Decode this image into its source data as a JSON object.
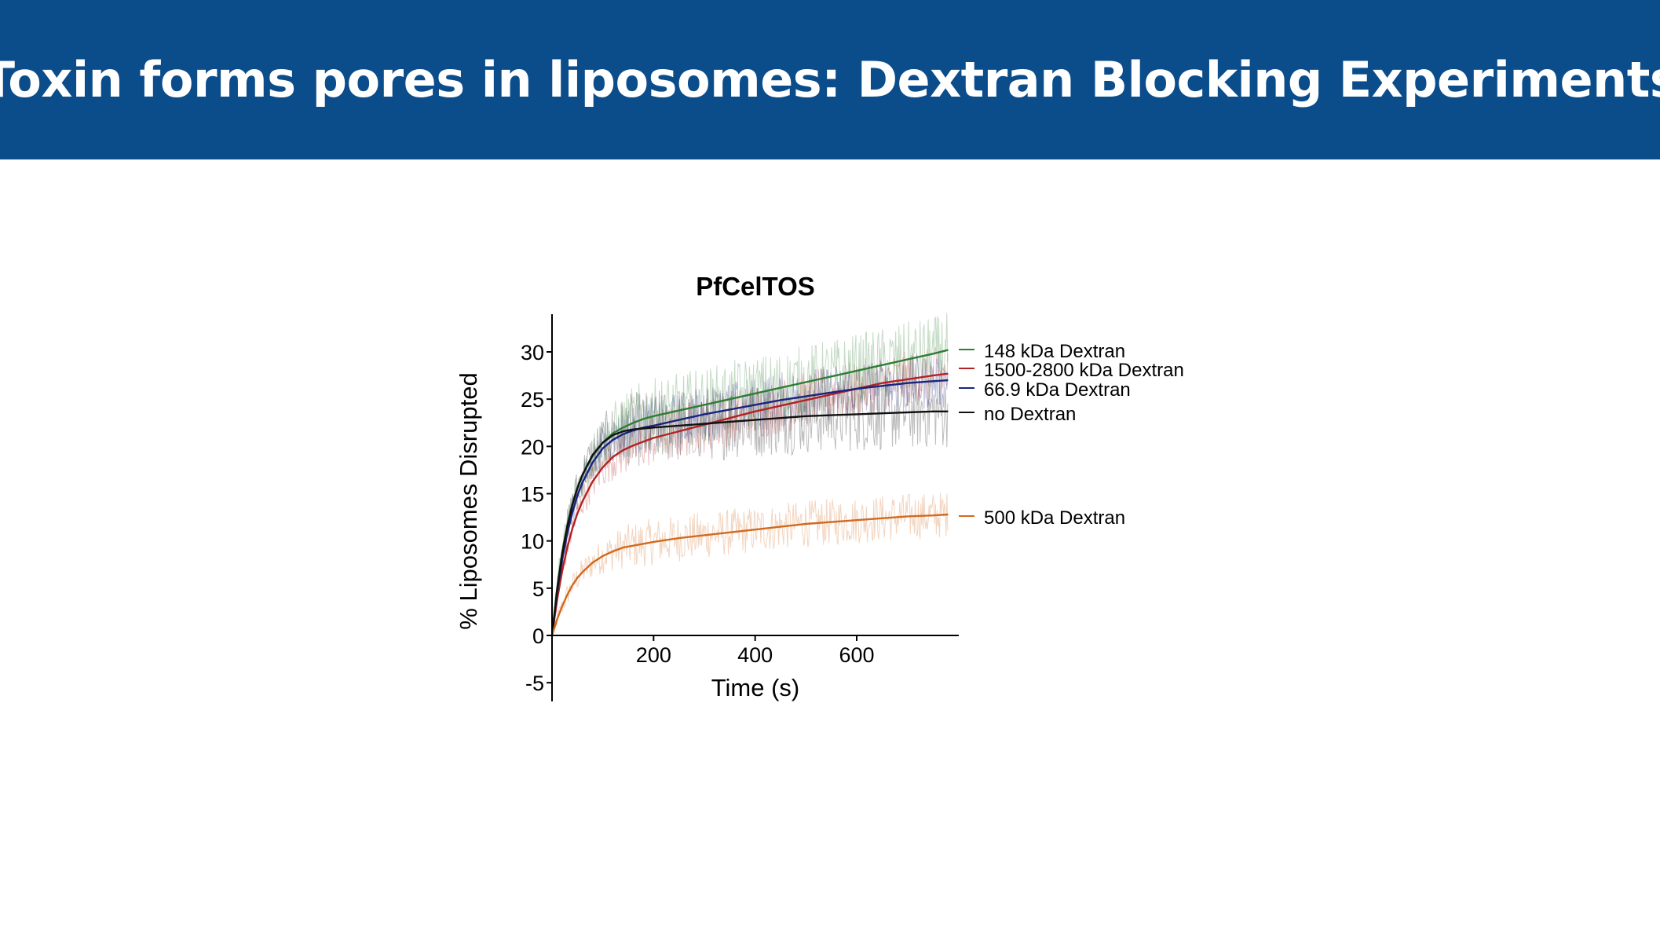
{
  "slide": {
    "title": "Toxin forms pores in liposomes: Dextran Blocking Experiments",
    "title_bar_color": "#0b4d8b"
  },
  "chart_data": {
    "type": "line",
    "title": "PfCelTOS",
    "xlabel": "Time (s)",
    "ylabel": "% Liposomes Disrupted",
    "xlim": [
      0,
      800
    ],
    "ylim": [
      -7,
      34
    ],
    "xticks": [
      200,
      400,
      600
    ],
    "yticks": [
      -5,
      0,
      5,
      10,
      15,
      20,
      25,
      30
    ],
    "grid": false,
    "legend_placement": "right",
    "x": [
      0,
      10,
      20,
      30,
      40,
      50,
      60,
      80,
      100,
      120,
      140,
      160,
      180,
      200,
      250,
      300,
      350,
      400,
      450,
      500,
      550,
      600,
      650,
      700,
      750,
      780
    ],
    "series": [
      {
        "name": "148 kDa Dextran",
        "color": "#2e7d32",
        "values": [
          0,
          5.0,
          8.8,
          11.7,
          13.9,
          15.6,
          17.0,
          19.0,
          20.4,
          21.4,
          22.0,
          22.5,
          22.9,
          23.2,
          23.8,
          24.4,
          25.0,
          25.6,
          26.2,
          26.8,
          27.4,
          28.0,
          28.6,
          29.2,
          29.8,
          30.2
        ]
      },
      {
        "name": "1500-2800 kDa Dextran",
        "color": "#b22222",
        "values": [
          0,
          3.8,
          6.8,
          9.3,
          11.3,
          12.9,
          14.2,
          16.3,
          17.8,
          18.9,
          19.6,
          20.1,
          20.5,
          20.9,
          21.6,
          22.3,
          23.0,
          23.7,
          24.3,
          24.9,
          25.5,
          26.1,
          26.7,
          27.1,
          27.5,
          27.7
        ]
      },
      {
        "name": "66.9 kDa Dextran",
        "color": "#1a237e",
        "values": [
          0,
          4.5,
          8.0,
          10.8,
          13.0,
          14.8,
          16.2,
          18.3,
          19.8,
          20.7,
          21.3,
          21.7,
          22.0,
          22.2,
          22.8,
          23.4,
          23.9,
          24.4,
          24.9,
          25.3,
          25.7,
          26.1,
          26.4,
          26.7,
          26.9,
          27.0
        ]
      },
      {
        "name": "no Dextran",
        "color": "#111111",
        "values": [
          0,
          4.8,
          8.6,
          11.5,
          13.8,
          15.6,
          17.0,
          19.1,
          20.4,
          21.2,
          21.6,
          21.8,
          21.9,
          22.0,
          22.2,
          22.4,
          22.6,
          22.8,
          23.0,
          23.2,
          23.3,
          23.4,
          23.5,
          23.6,
          23.7,
          23.7
        ]
      },
      {
        "name": "500 kDa Dextran",
        "color": "#d2691e",
        "values": [
          0,
          1.7,
          3.1,
          4.3,
          5.3,
          6.1,
          6.7,
          7.7,
          8.4,
          8.9,
          9.3,
          9.5,
          9.7,
          9.9,
          10.3,
          10.6,
          10.9,
          11.2,
          11.5,
          11.8,
          12.0,
          12.2,
          12.4,
          12.6,
          12.7,
          12.8
        ]
      }
    ],
    "raw_noise_amplitude": {
      "148 kDa Dextran": 4,
      "1500-2800 kDa Dextran": 3,
      "66.9 kDa Dextran": 3,
      "no Dextran": 4,
      "500 kDa Dextran": 2.5
    }
  }
}
